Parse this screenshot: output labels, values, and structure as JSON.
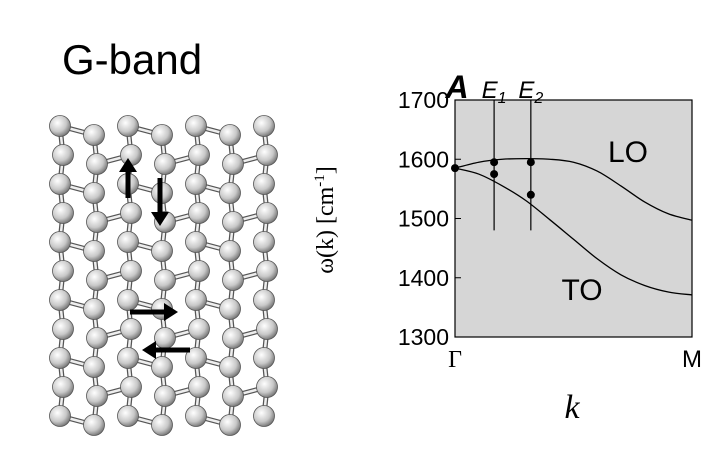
{
  "chart_data": {
    "type": "line",
    "title": "G-band",
    "xlabel": "k",
    "ylabel": {
      "text": "ω(k) [cm",
      "sup": "-1",
      "end": "]"
    },
    "xlim": [
      0,
      1
    ],
    "xticks": [
      {
        "value": 0,
        "label": "Γ"
      },
      {
        "value": 1,
        "label": "M"
      }
    ],
    "ylim": [
      1300,
      1700
    ],
    "yticks": [
      1300,
      1400,
      1500,
      1600,
      1700
    ],
    "background": "#d6d6d6",
    "x": [
      0,
      0.1,
      0.2,
      0.3,
      0.4,
      0.5,
      0.6,
      0.7,
      0.8,
      0.9,
      1
    ],
    "series": [
      {
        "name": "LO",
        "color": "#000000",
        "values": [
          1585,
          1595,
          1600,
          1601,
          1600,
          1595,
          1580,
          1555,
          1528,
          1508,
          1497
        ]
      },
      {
        "name": "TO",
        "color": "#000000",
        "values": [
          1585,
          1575,
          1555,
          1530,
          1498,
          1465,
          1432,
          1405,
          1387,
          1376,
          1371
        ]
      }
    ],
    "vline_ylim": [
      1480,
      1700
    ],
    "modes": [
      {
        "label": "A",
        "x": 0,
        "values": [
          1585
        ]
      },
      {
        "label": "E",
        "subscript": "1",
        "x": 0.165,
        "values": [
          1595,
          1575
        ]
      },
      {
        "label": "E",
        "subscript": "2",
        "x": 0.32,
        "values": [
          1595,
          1540
        ]
      }
    ]
  }
}
